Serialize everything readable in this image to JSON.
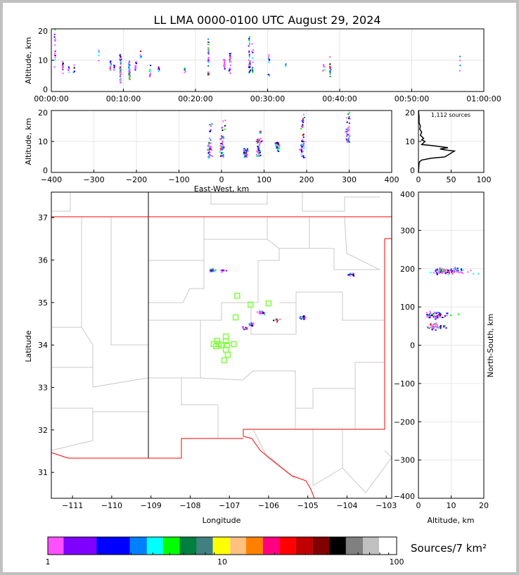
{
  "title": "LL LMA 0000-0100 UTC August 29, 2024",
  "colorbar": {
    "label": "Sources/7 km²",
    "tick_labels": [
      "1",
      "10",
      "100"
    ],
    "colors": [
      "#ff50ff",
      "#8000ff",
      "#0000ff",
      "#0080ff",
      "#00ffff",
      "#00ff00",
      "#008040",
      "#408080",
      "#ffff00",
      "#ffc080",
      "#ff8000",
      "#ff0080",
      "#ff0000",
      "#c00000",
      "#800000",
      "#000000",
      "#808080",
      "#c0c0c0",
      "#ffffff"
    ],
    "boundaries": [
      1,
      1.23,
      1.9,
      2.95,
      3.7,
      4.57,
      5.7,
      7.13,
      8.84,
      11.1,
      13.7,
      17.1,
      21.3,
      26.5,
      33.0,
      41.2,
      51.2,
      64.1,
      79.3,
      100
    ]
  },
  "chart_data": [
    {
      "id": "time_height",
      "type": "scatter",
      "xlabel": "",
      "ylabel": "Altitude, km",
      "xlim": [
        0,
        60
      ],
      "ylim": [
        0,
        20
      ],
      "xtick_labels": [
        "00:00:00",
        "00:10:00",
        "00:20:00",
        "00:30:00",
        "00:40:00",
        "00:50:00",
        "01:00:00"
      ],
      "ytick_labels": [
        "0",
        "10",
        "20"
      ],
      "clusters_min_altlo_althi_n": [
        [
          0.4,
          8,
          20,
          15
        ],
        [
          1.5,
          6,
          10,
          10
        ],
        [
          2.3,
          6,
          9,
          6
        ],
        [
          3.1,
          6,
          9,
          5
        ],
        [
          6.5,
          10,
          14,
          5
        ],
        [
          8.1,
          7,
          10,
          12
        ],
        [
          8.6,
          7,
          9,
          8
        ],
        [
          9.5,
          3,
          12,
          40
        ],
        [
          10.7,
          4,
          10,
          35
        ],
        [
          11.6,
          7,
          10,
          10
        ],
        [
          12.3,
          11,
          14,
          6
        ],
        [
          13.6,
          5,
          9,
          10
        ],
        [
          14.8,
          6,
          9,
          6
        ],
        [
          18.4,
          6,
          8,
          6
        ],
        [
          21.7,
          5,
          17,
          25
        ],
        [
          23.9,
          7,
          11,
          15
        ],
        [
          24.7,
          6,
          13,
          20
        ],
        [
          27.4,
          6,
          18,
          30
        ],
        [
          27.8,
          6,
          16,
          15
        ],
        [
          30.1,
          5,
          12,
          10
        ],
        [
          32.4,
          8,
          9,
          4
        ],
        [
          37.7,
          6,
          9,
          6
        ],
        [
          38.6,
          5,
          12,
          15
        ],
        [
          56.6,
          6,
          12,
          4
        ]
      ]
    },
    {
      "id": "ew_height",
      "type": "scatter",
      "xlabel": "East-West, km",
      "ylabel": "Altitude, km",
      "xlim": [
        -400,
        400
      ],
      "ylim": [
        0,
        20
      ],
      "xtick_labels": [
        "−400",
        "−300",
        "−200",
        "−100",
        "0",
        "100",
        "200",
        "300",
        "400"
      ],
      "ytick_labels": [
        "0",
        "10",
        "20"
      ],
      "clusters_ew_altlo_althi_n": [
        [
          -30,
          5,
          10,
          40
        ],
        [
          -28,
          10,
          16,
          8
        ],
        [
          0,
          5,
          12,
          40
        ],
        [
          2,
          12,
          18,
          6
        ],
        [
          55,
          5,
          8,
          40
        ],
        [
          85,
          5,
          11,
          50
        ],
        [
          90,
          9,
          14,
          10
        ],
        [
          130,
          7,
          10,
          25
        ],
        [
          188,
          5,
          11,
          35
        ],
        [
          190,
          11,
          19,
          15
        ],
        [
          295,
          10,
          15,
          30
        ],
        [
          298,
          15,
          20,
          8
        ]
      ]
    },
    {
      "id": "altitude_histogram",
      "type": "line",
      "annotation": "1,112 sources",
      "xlim": [
        0,
        100
      ],
      "ylim": [
        0,
        20
      ],
      "xtick_labels": [
        "0",
        "50",
        "100"
      ],
      "ytick_labels": [
        "0",
        "10",
        "20"
      ],
      "points_count_alt": [
        [
          0,
          0
        ],
        [
          1,
          3
        ],
        [
          2,
          3.5
        ],
        [
          5,
          4
        ],
        [
          20,
          4.6
        ],
        [
          40,
          5
        ],
        [
          45,
          5.6
        ],
        [
          55,
          6.9
        ],
        [
          40,
          7.3
        ],
        [
          33,
          7.6
        ],
        [
          45,
          8
        ],
        [
          20,
          8.7
        ],
        [
          5,
          9
        ],
        [
          10,
          10
        ],
        [
          5,
          10.5
        ],
        [
          8,
          11
        ],
        [
          3,
          12
        ],
        [
          5,
          13
        ],
        [
          2,
          14
        ],
        [
          3,
          15
        ],
        [
          1,
          16
        ],
        [
          1,
          18
        ],
        [
          0,
          20
        ]
      ]
    },
    {
      "id": "plan_view",
      "type": "scatter",
      "xlabel": "Longitude",
      "ylabel": "Latitude",
      "xlim": [
        -111.54,
        -102.86
      ],
      "ylim": [
        30.39,
        37.6
      ],
      "xtick_labels": [
        "−111",
        "−110",
        "−109",
        "−108",
        "−107",
        "−106",
        "−105",
        "−104",
        "−103"
      ],
      "ytick_labels": [
        "31",
        "32",
        "33",
        "34",
        "35",
        "36",
        "37"
      ],
      "clusters_lon_lat_n": [
        [
          -107.45,
          35.77,
          25
        ],
        [
          -107.18,
          35.77,
          10
        ],
        [
          -103.92,
          35.68,
          15
        ],
        [
          -106.2,
          34.78,
          30
        ],
        [
          -106.45,
          34.5,
          30
        ],
        [
          -106.6,
          34.4,
          20
        ],
        [
          -105.8,
          34.6,
          8
        ],
        [
          -105.14,
          34.66,
          20
        ]
      ],
      "stations_lon_lat": [
        [
          -106.8,
          35.16
        ],
        [
          -106.46,
          34.95
        ],
        [
          -106.0,
          34.98
        ],
        [
          -106.84,
          34.65
        ],
        [
          -107.09,
          34.2
        ],
        [
          -107.31,
          34.1
        ],
        [
          -107.09,
          34.09
        ],
        [
          -107.4,
          34.02
        ],
        [
          -107.27,
          34.02
        ],
        [
          -107.34,
          33.97
        ],
        [
          -107.2,
          33.99
        ],
        [
          -107.06,
          34.0
        ],
        [
          -106.89,
          34.02
        ],
        [
          -107.09,
          33.89
        ],
        [
          -107.04,
          33.77
        ],
        [
          -107.13,
          33.64
        ]
      ]
    },
    {
      "id": "ns_height",
      "type": "scatter",
      "xlabel": "Altitude, km",
      "ylabel": "North-South, km",
      "xlim": [
        0,
        20
      ],
      "ylim": [
        -400,
        400
      ],
      "xtick_labels": [
        "0",
        "10",
        "20"
      ],
      "ytick_labels": [
        "−400",
        "−300",
        "−200",
        "−100",
        "0",
        "100",
        "200",
        "300",
        "400"
      ],
      "clusters_ns_altlo_althi_n": [
        [
          195,
          4,
          18,
          90
        ],
        [
          80,
          3,
          13,
          60
        ],
        [
          50,
          4,
          10,
          40
        ]
      ]
    }
  ]
}
